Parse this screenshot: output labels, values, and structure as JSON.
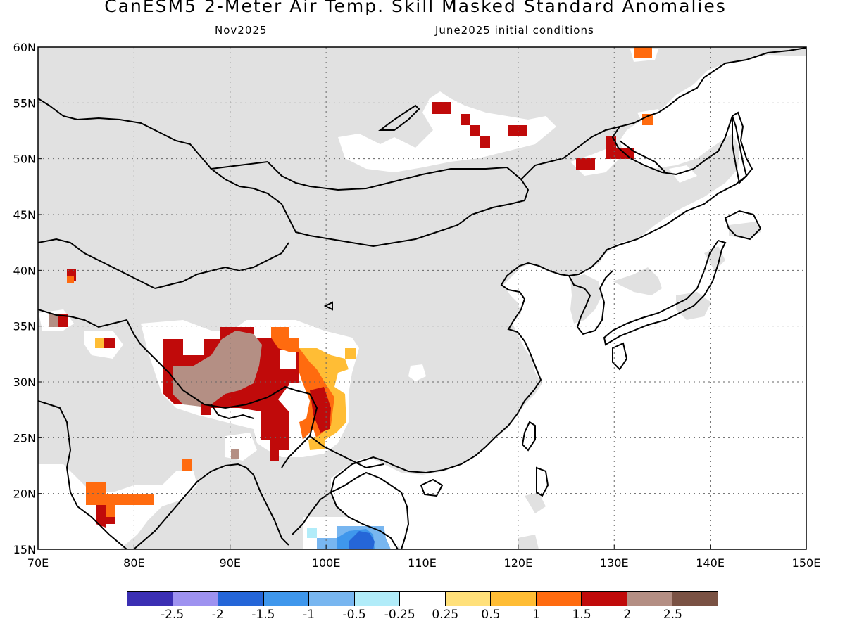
{
  "title": "CanESM5 2-Meter Air Temp. Skill Masked Standard Anomalies",
  "valid_month": "Nov2025",
  "init_conditions": "June2025 initial conditions",
  "map": {
    "lon_range": [
      70,
      150
    ],
    "lat_range": [
      15,
      60
    ],
    "lon_ticks": [
      "70E",
      "80E",
      "90E",
      "100E",
      "110E",
      "120E",
      "130E",
      "140E",
      "150E"
    ],
    "lat_ticks": [
      "15N",
      "20N",
      "25N",
      "30N",
      "35N",
      "40N",
      "45N",
      "50N",
      "55N",
      "60N"
    ],
    "masked_color": "#e1e1e1",
    "ocean_color": "#ffffff",
    "grid": "dotted"
  },
  "legend": {
    "colors": [
      "#3b2fb3",
      "#9e92f0",
      "#2566d8",
      "#3f97ec",
      "#78b6f0",
      "#b1ecf9",
      "#ffffff",
      "#ffe07a",
      "#ffbd35",
      "#ff6b0f",
      "#c00a0a",
      "#b48f84",
      "#7a5244"
    ],
    "labels": [
      "-2.5",
      "-2",
      "-1.5",
      "-1",
      "-0.5",
      "-0.25",
      "0.25",
      "0.5",
      "1",
      "1.5",
      "2",
      "2.5"
    ]
  },
  "anomaly_regions": [
    {
      "name": "tibet-brown",
      "value": 2.3,
      "color": "#b48f84"
    },
    {
      "name": "tibet-red",
      "value": 1.8,
      "color": "#c00a0a"
    },
    {
      "name": "sichuan-orange",
      "value": 1.3,
      "color": "#ff6b0f"
    },
    {
      "name": "yunnan-yellow",
      "value": 0.7,
      "color": "#ffbd35"
    },
    {
      "name": "india-orange",
      "value": 1.3,
      "color": "#ff6b0f"
    },
    {
      "name": "indochina-blue",
      "value": -0.8,
      "color": "#78b6f0"
    },
    {
      "name": "siberia-red",
      "value": 1.8,
      "color": "#c00a0a"
    }
  ]
}
